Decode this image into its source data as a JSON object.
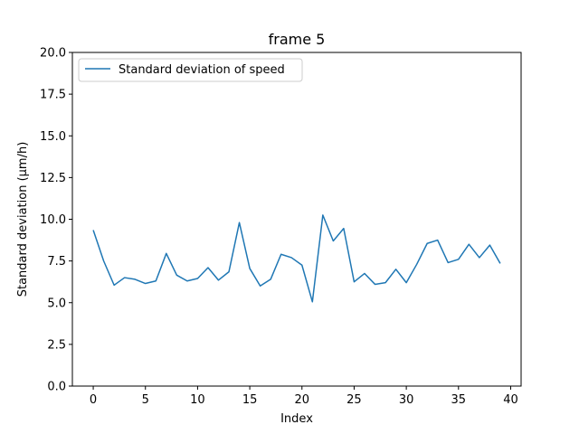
{
  "chart_data": {
    "type": "line",
    "title": "frame 5",
    "xlabel": "Index",
    "ylabel": "Standard deviation (μm/h)",
    "xlim": [
      -2,
      41
    ],
    "ylim": [
      0,
      20
    ],
    "xticks": [
      0,
      5,
      10,
      15,
      20,
      25,
      30,
      35,
      40
    ],
    "xtick_labels": [
      "0",
      "5",
      "10",
      "15",
      "20",
      "25",
      "30",
      "35",
      "40"
    ],
    "yticks": [
      0,
      2.5,
      5,
      7.5,
      10,
      12.5,
      15,
      17.5,
      20
    ],
    "ytick_labels": [
      "0.0",
      "2.5",
      "5.0",
      "7.5",
      "10.0",
      "12.5",
      "15.0",
      "17.5",
      "20.0"
    ],
    "grid": false,
    "legend_position": "top-left",
    "series": [
      {
        "name": "Standard deviation of speed",
        "color": "#1f77b4",
        "x": [
          0,
          1,
          2,
          3,
          4,
          5,
          6,
          7,
          8,
          9,
          10,
          11,
          12,
          13,
          14,
          15,
          16,
          17,
          18,
          19,
          20,
          21,
          22,
          23,
          24,
          25,
          26,
          27,
          28,
          29,
          30,
          31,
          32,
          33,
          34,
          35,
          36,
          37,
          38,
          39
        ],
        "y": [
          9.35,
          7.5,
          6.05,
          6.5,
          6.4,
          6.15,
          6.3,
          7.95,
          6.65,
          6.3,
          6.45,
          7.1,
          6.35,
          6.85,
          9.8,
          7.05,
          6.0,
          6.4,
          7.9,
          7.7,
          7.25,
          5.05,
          10.25,
          8.7,
          9.45,
          6.25,
          6.75,
          6.1,
          6.2,
          7.0,
          6.2,
          7.3,
          8.55,
          8.75,
          7.4,
          7.6,
          8.5,
          7.7,
          8.45,
          7.35
        ]
      }
    ]
  }
}
